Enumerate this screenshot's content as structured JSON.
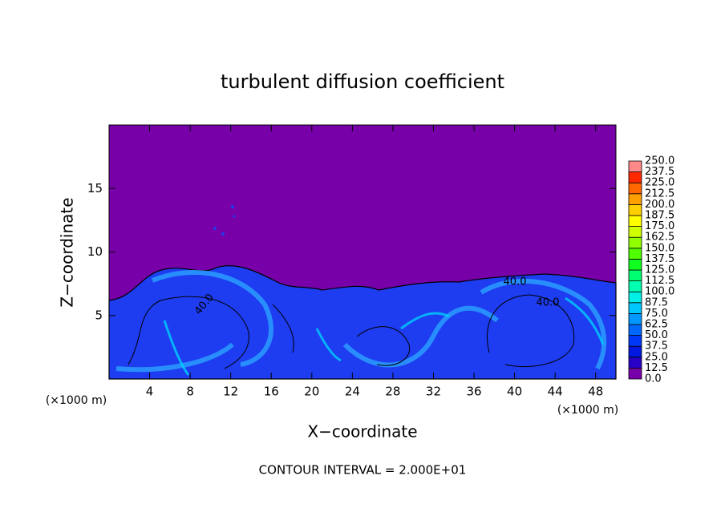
{
  "chart_data": {
    "type": "contour",
    "title": "turbulent diffusion coefficient",
    "xlabel": "X−coordinate",
    "ylabel": "Z−coordinate",
    "x_unit": "(×1000 m)",
    "y_unit": "(×1000 m)",
    "footnote": "CONTOUR INTERVAL = 2.000E+01",
    "xlim": [
      0,
      50
    ],
    "xticks": [
      4,
      8,
      12,
      16,
      20,
      24,
      28,
      32,
      36,
      40,
      44,
      48
    ],
    "ylim": [
      0,
      20
    ],
    "yticks": [
      5,
      10,
      15
    ],
    "contour_labels": [
      {
        "value": 40,
        "label": "40.0"
      },
      {
        "value": 40,
        "label": "40.0"
      },
      {
        "value": 40,
        "label": "40.0"
      }
    ],
    "colorbar": {
      "levels": [
        {
          "value": 0,
          "label": "0.0"
        },
        {
          "value": 12.5,
          "label": "12.5"
        },
        {
          "value": 25,
          "label": "25.0"
        },
        {
          "value": 37.5,
          "label": "37.5"
        },
        {
          "value": 50,
          "label": "50.0"
        },
        {
          "value": 62.5,
          "label": "62.5"
        },
        {
          "value": 75,
          "label": "75.0"
        },
        {
          "value": 87.5,
          "label": "87.5"
        },
        {
          "value": 100,
          "label": "100.0"
        },
        {
          "value": 112.5,
          "label": "112.5"
        },
        {
          "value": 125,
          "label": "125.0"
        },
        {
          "value": 137.5,
          "label": "137.5"
        },
        {
          "value": 150,
          "label": "150.0"
        },
        {
          "value": 162.5,
          "label": "162.5"
        },
        {
          "value": 175,
          "label": "175.0"
        },
        {
          "value": 187.5,
          "label": "187.5"
        },
        {
          "value": 200,
          "label": "200.0"
        },
        {
          "value": 212.5,
          "label": "212.5"
        },
        {
          "value": 225,
          "label": "225.0"
        },
        {
          "value": 237.5,
          "label": "237.5"
        },
        {
          "value": 250,
          "label": "250.0"
        }
      ],
      "colors": [
        "#7800a8",
        "#2800c8",
        "#0018e0",
        "#0038f8",
        "#0068ff",
        "#0098ff",
        "#00c8ff",
        "#00f0e8",
        "#00ffb0",
        "#00ff70",
        "#10ff20",
        "#50ff00",
        "#90ff00",
        "#d0ff00",
        "#ffff00",
        "#ffd000",
        "#ffa000",
        "#ff6800",
        "#ff2800",
        "#ff8888"
      ]
    }
  }
}
